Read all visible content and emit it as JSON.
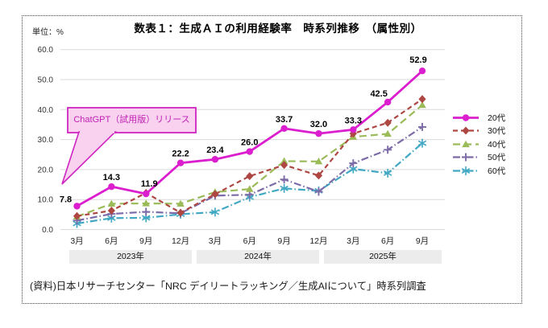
{
  "title": "数表１：生成ＡＩの利用経験率　時系列推移　（属性別）",
  "unit_label": "単位：%",
  "source": "(資料)日本リサーチセンター「NRC デイリートラッキング／生成AIについて」時系列調査",
  "annotation": {
    "text": "ChatGPT（試用版）リリース",
    "border_color": "#CF25C2",
    "fill_color": "#F8D2EF",
    "text_color": "#C320B6"
  },
  "colors": {
    "grid": "#D9D9D9",
    "year_band_bg": "#ECECEC"
  },
  "chart_data": {
    "type": "line",
    "title": "数表１：生成ＡＩの利用経験率　時系列推移　（属性別）",
    "ylabel": "単位：%",
    "ylim": [
      0,
      60
    ],
    "ytick_step": 10,
    "grid": true,
    "legend_position": "right",
    "x_labels": [
      "3月",
      "6月",
      "9月",
      "12月",
      "3月",
      "6月",
      "9月",
      "12月",
      "3月",
      "6月",
      "9月"
    ],
    "year_bands": [
      {
        "label": "2023年"
      },
      {
        "label": "2024年"
      },
      {
        "label": "2025年"
      }
    ],
    "series": [
      {
        "name": "20代",
        "color": "#DB1ECE",
        "style": "solid",
        "marker": "circle",
        "labeled": true,
        "values": [
          7.8,
          14.3,
          11.9,
          22.2,
          23.4,
          26.0,
          33.7,
          32.0,
          33.3,
          42.5,
          52.9
        ]
      },
      {
        "name": "30代",
        "color": "#AE4742",
        "style": "dashed",
        "marker": "diamond",
        "labeled": false,
        "values": [
          4.5,
          6.3,
          12.2,
          5.6,
          11.8,
          17.8,
          21.5,
          18.0,
          32.0,
          35.6,
          43.5
        ]
      },
      {
        "name": "40代",
        "color": "#9BBB59",
        "style": "long-dash",
        "marker": "triangle",
        "labeled": false,
        "values": [
          4.3,
          8.6,
          8.7,
          8.6,
          12.5,
          13.5,
          22.8,
          22.7,
          30.9,
          31.9,
          41.5
        ]
      },
      {
        "name": "50代",
        "color": "#7D6BA8",
        "style": "dash-dot",
        "marker": "plus",
        "labeled": false,
        "values": [
          3.0,
          5.2,
          5.9,
          5.4,
          11.3,
          11.6,
          16.7,
          12.6,
          22.1,
          26.6,
          34.2
        ]
      },
      {
        "name": "60代",
        "color": "#41A8C4",
        "style": "dash-dot",
        "marker": "asterisk",
        "labeled": false,
        "values": [
          2.0,
          3.8,
          3.9,
          5.1,
          5.8,
          10.8,
          13.7,
          12.9,
          20.2,
          18.8,
          28.8
        ]
      }
    ]
  }
}
